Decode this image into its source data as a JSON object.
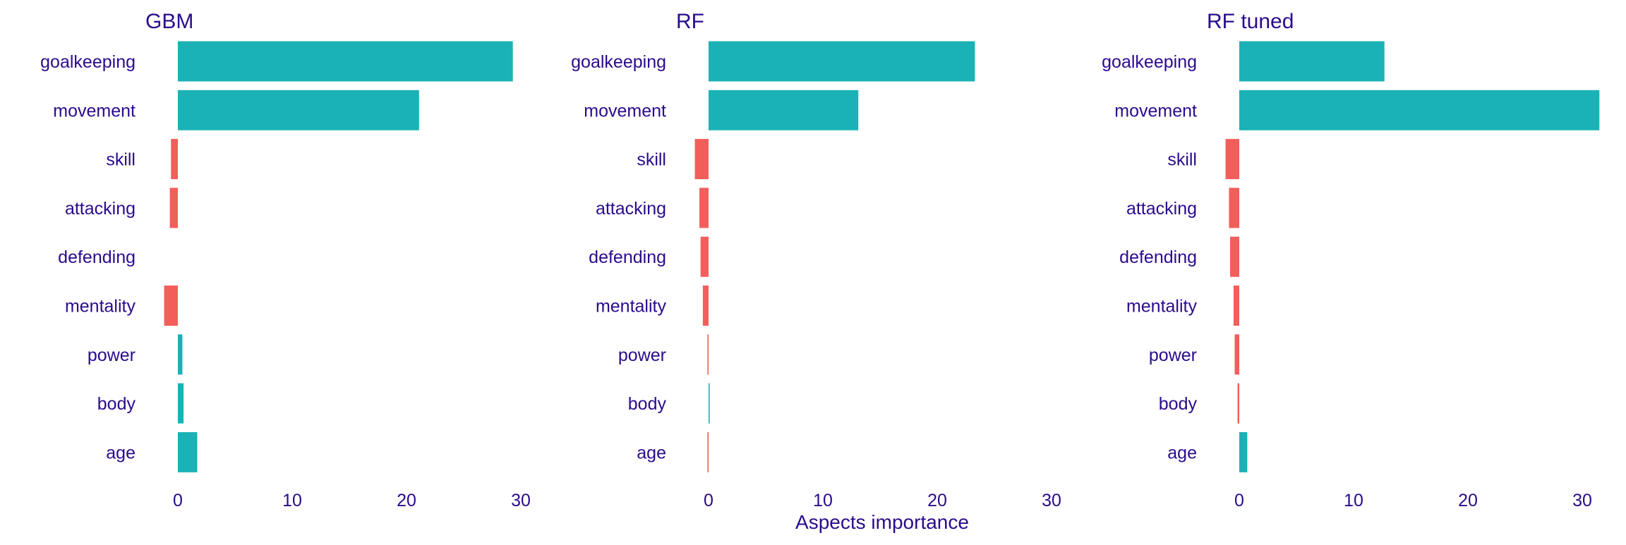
{
  "chart_data": {
    "type": "bar",
    "orientation": "horizontal",
    "xlabel": "Aspects importance",
    "xlim": [
      -1.2,
      31.5
    ],
    "xticks": [
      0,
      10,
      20,
      30
    ],
    "grid": false,
    "legend": "none",
    "categories": [
      "goalkeeping",
      "movement",
      "skill",
      "attacking",
      "defending",
      "mentality",
      "power",
      "body",
      "age"
    ],
    "panels": [
      {
        "title": "GBM",
        "values": [
          29.3,
          21.1,
          -0.6,
          -0.7,
          0.0,
          -1.2,
          0.4,
          0.5,
          1.7
        ]
      },
      {
        "title": "RF",
        "values": [
          23.3,
          13.1,
          -1.2,
          -0.8,
          -0.7,
          -0.5,
          -0.1,
          0.1,
          -0.1
        ]
      },
      {
        "title": "RF tuned",
        "values": [
          12.7,
          31.5,
          -1.2,
          -0.9,
          -0.8,
          -0.5,
          -0.4,
          -0.15,
          0.7
        ]
      }
    ],
    "colors": {
      "positive": "#1ab2b6",
      "negative": "#f25e5a",
      "text": "#2b0b8c"
    }
  }
}
